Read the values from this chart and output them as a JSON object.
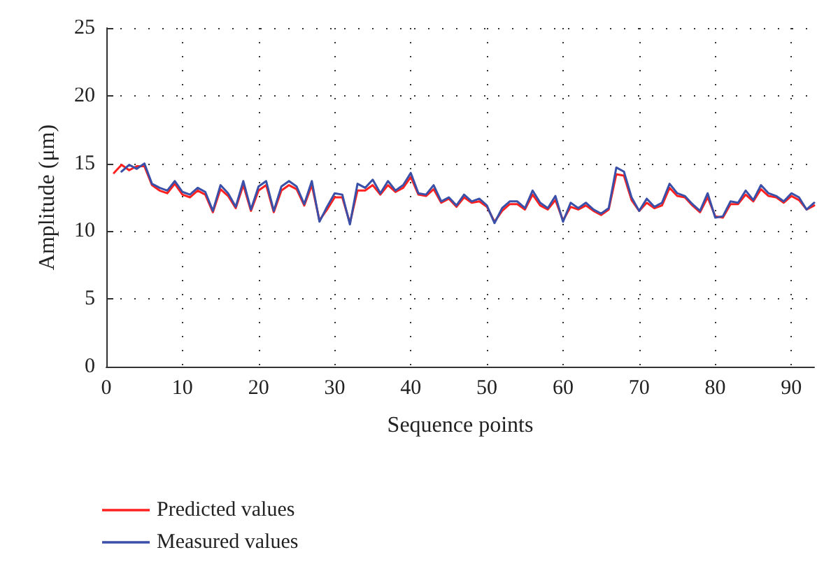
{
  "chart_data": {
    "type": "line",
    "xlabel": "Sequence points",
    "ylabel": "Amplitude (μm)",
    "xlim": [
      0,
      93
    ],
    "xticks": [
      0,
      10,
      20,
      30,
      40,
      50,
      60,
      70,
      80,
      90
    ],
    "ylim": [
      0,
      25
    ],
    "yticks": [
      0,
      5,
      10,
      15,
      20,
      25
    ],
    "grid": true,
    "legend": "bottom left",
    "line_style": "solid",
    "marker": "none",
    "series": [
      {
        "name": "Predicted values",
        "color": "#ff2020",
        "x": [
          1,
          2,
          3,
          4,
          5,
          6,
          7,
          8,
          9,
          10,
          11,
          12,
          13,
          14,
          15,
          16,
          17,
          18,
          19,
          20,
          21,
          22,
          23,
          24,
          25,
          26,
          27,
          28,
          29,
          30,
          31,
          32,
          33,
          34,
          35,
          36,
          37,
          38,
          39,
          40,
          41,
          42,
          43,
          44,
          45,
          46,
          47,
          48,
          49,
          50,
          51,
          52,
          53,
          54,
          55,
          56,
          57,
          58,
          59,
          60,
          61,
          62,
          63,
          64,
          65,
          66,
          67,
          68,
          69,
          70,
          71,
          72,
          73,
          74,
          75,
          76,
          77,
          78,
          79,
          80,
          81,
          82,
          83,
          84,
          85,
          86,
          87,
          88,
          89,
          90,
          91,
          92,
          93
        ],
        "values": [
          14.3,
          14.9,
          14.5,
          14.8,
          14.8,
          13.4,
          13.0,
          12.8,
          13.5,
          12.7,
          12.5,
          13.0,
          12.7,
          11.4,
          13.1,
          12.6,
          11.7,
          13.4,
          11.5,
          13.0,
          13.4,
          11.4,
          13.0,
          13.4,
          13.1,
          11.9,
          13.4,
          10.8,
          11.6,
          12.5,
          12.5,
          10.6,
          13.0,
          13.0,
          13.4,
          12.7,
          13.4,
          12.9,
          13.2,
          14.0,
          12.7,
          12.6,
          13.1,
          12.1,
          12.4,
          11.8,
          12.5,
          12.1,
          12.2,
          11.8,
          10.7,
          11.5,
          12.0,
          12.0,
          11.6,
          12.7,
          11.9,
          11.6,
          12.3,
          10.8,
          11.8,
          11.6,
          11.9,
          11.5,
          11.2,
          11.6,
          14.2,
          14.1,
          12.3,
          11.5,
          12.1,
          11.7,
          11.9,
          13.2,
          12.6,
          12.5,
          11.9,
          11.4,
          12.5,
          11.1,
          11.0,
          12.0,
          12.0,
          12.7,
          12.2,
          13.1,
          12.6,
          12.5,
          12.1,
          12.6,
          12.3,
          11.6,
          11.9
        ]
      },
      {
        "name": "Measured values",
        "color": "#3a4fa8",
        "x": [
          2,
          3,
          4,
          5,
          6,
          7,
          8,
          9,
          10,
          11,
          12,
          13,
          14,
          15,
          16,
          17,
          18,
          19,
          20,
          21,
          22,
          23,
          24,
          25,
          26,
          27,
          28,
          29,
          30,
          31,
          32,
          33,
          34,
          35,
          36,
          37,
          38,
          39,
          40,
          41,
          42,
          43,
          44,
          45,
          46,
          47,
          48,
          49,
          50,
          51,
          52,
          53,
          54,
          55,
          56,
          57,
          58,
          59,
          60,
          61,
          62,
          63,
          64,
          65,
          66,
          67,
          68,
          69,
          70,
          71,
          72,
          73,
          74,
          75,
          76,
          77,
          78,
          79,
          80,
          81,
          82,
          83,
          84,
          85,
          86,
          87,
          88,
          89,
          90,
          91,
          92,
          93
        ],
        "values": [
          14.4,
          14.9,
          14.6,
          15.0,
          13.5,
          13.2,
          13.0,
          13.7,
          12.9,
          12.7,
          13.2,
          12.9,
          11.5,
          13.4,
          12.8,
          11.8,
          13.7,
          11.6,
          13.3,
          13.7,
          11.5,
          13.3,
          13.7,
          13.3,
          12.0,
          13.7,
          10.7,
          11.8,
          12.8,
          12.7,
          10.5,
          13.5,
          13.2,
          13.8,
          12.8,
          13.7,
          13.0,
          13.4,
          14.3,
          12.8,
          12.7,
          13.4,
          12.2,
          12.5,
          11.9,
          12.7,
          12.2,
          12.4,
          11.9,
          10.6,
          11.7,
          12.2,
          12.2,
          11.7,
          13.0,
          12.1,
          11.7,
          12.6,
          10.7,
          12.1,
          11.7,
          12.1,
          11.6,
          11.3,
          11.7,
          14.7,
          14.4,
          12.5,
          11.5,
          12.4,
          11.8,
          12.1,
          13.5,
          12.8,
          12.6,
          12.0,
          11.5,
          12.8,
          11.0,
          11.1,
          12.2,
          12.1,
          13.0,
          12.3,
          13.4,
          12.8,
          12.6,
          12.2,
          12.8,
          12.5,
          11.6,
          12.1
        ]
      }
    ]
  }
}
